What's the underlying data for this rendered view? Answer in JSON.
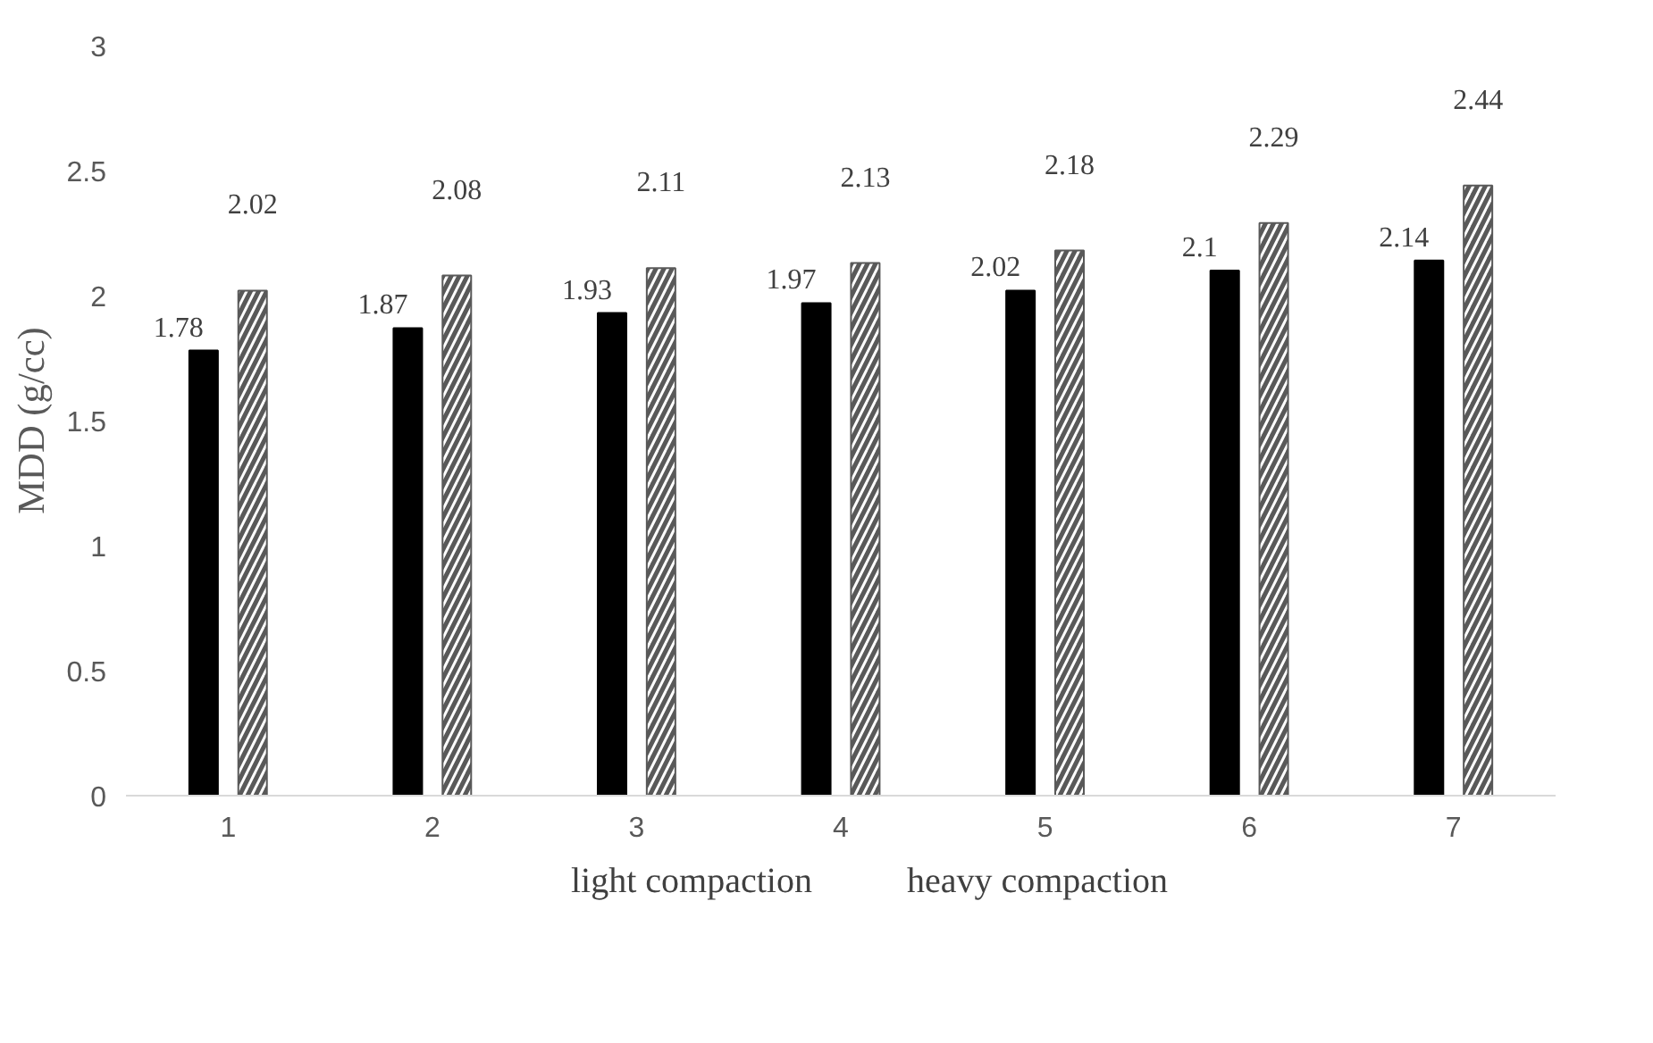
{
  "chart_data": {
    "type": "bar",
    "ylabel": "MDD (g/cc)",
    "categories": [
      "1",
      "2",
      "3",
      "4",
      "5",
      "6",
      "7"
    ],
    "series": [
      {
        "name": "light compaction",
        "color": "#000000",
        "values": [
          1.78,
          1.87,
          1.93,
          1.97,
          2.02,
          2.1,
          2.14
        ]
      },
      {
        "name": "heavy compaction",
        "color": "#595959",
        "values": [
          2.02,
          2.08,
          2.11,
          2.13,
          2.18,
          2.29,
          2.44
        ]
      }
    ],
    "ylim": [
      0,
      3
    ],
    "yticks": [
      0,
      0.5,
      1,
      1.5,
      2,
      2.5,
      3
    ],
    "grid": false,
    "legend": "bottom",
    "data_labels": true
  }
}
